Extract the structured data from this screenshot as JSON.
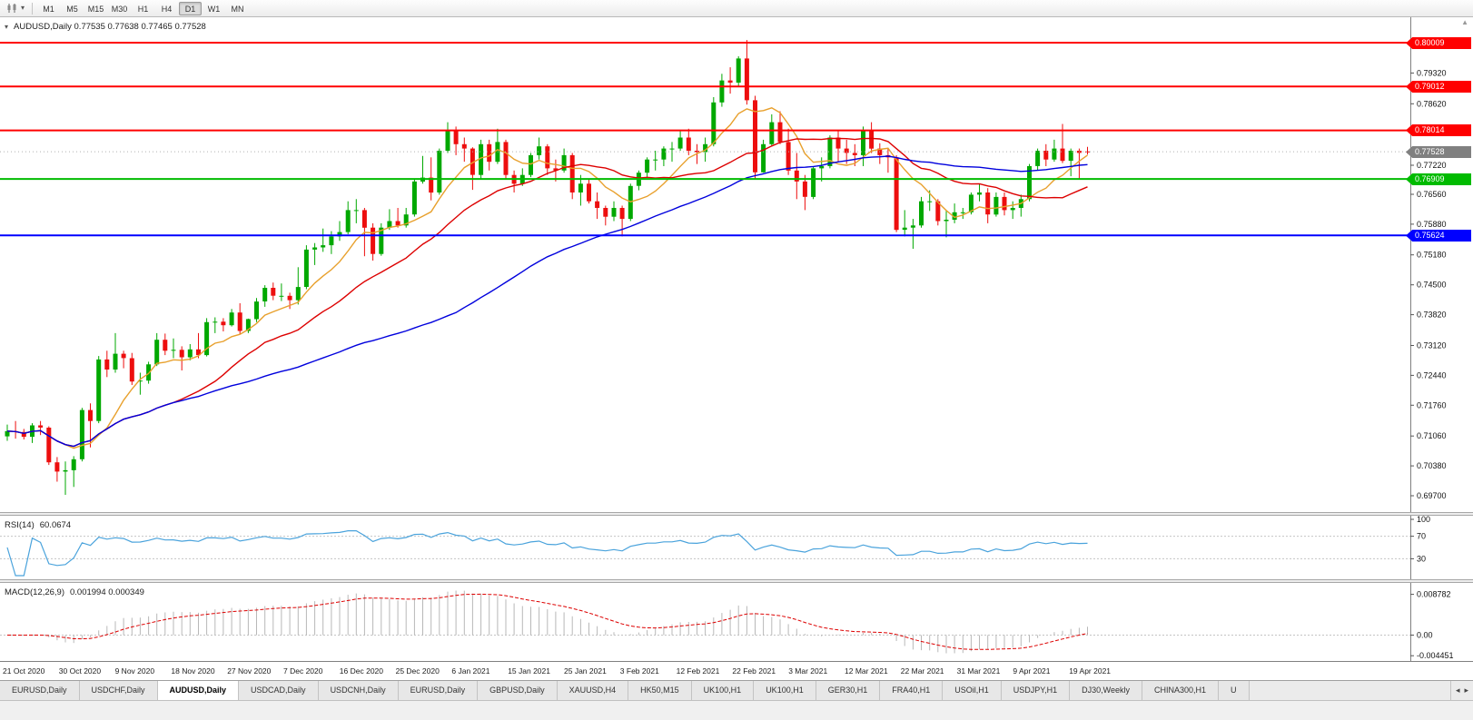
{
  "toolbar": {
    "dropdown_glyph": "▾",
    "timeframes": [
      "M1",
      "M5",
      "M15",
      "M30",
      "H1",
      "H4",
      "D1",
      "W1",
      "MN"
    ],
    "active_timeframe": "D1"
  },
  "chart": {
    "collapse_glyph": "▾",
    "scroll_up_glyph": "▲",
    "ohlc_readout": "AUDUSD,Daily 0.77535 0.77638 0.77465 0.77528"
  },
  "chart_data": {
    "type": "candlestick",
    "symbol": "AUDUSD",
    "timeframe": "Daily",
    "current_bar": {
      "open": 0.77535,
      "high": 0.77638,
      "low": 0.77465,
      "close": 0.77528
    },
    "colors": {
      "up": "#00A800",
      "down": "#ED0E0E"
    },
    "ohlc": [
      [
        0.7105,
        0.7132,
        0.7095,
        0.7117
      ],
      [
        0.7117,
        0.714,
        0.71,
        0.7115
      ],
      [
        0.7115,
        0.7122,
        0.7098,
        0.7104
      ],
      [
        0.7104,
        0.7135,
        0.709,
        0.713
      ],
      [
        0.713,
        0.714,
        0.7108,
        0.7125
      ],
      [
        0.7125,
        0.7128,
        0.704,
        0.7046
      ],
      [
        0.7046,
        0.7058,
        0.7002,
        0.7025
      ],
      [
        0.7025,
        0.7048,
        0.6972,
        0.7028
      ],
      [
        0.7028,
        0.706,
        0.699,
        0.7053
      ],
      [
        0.7053,
        0.717,
        0.7048,
        0.7165
      ],
      [
        0.7165,
        0.718,
        0.708,
        0.714
      ],
      [
        0.714,
        0.7288,
        0.7135,
        0.728
      ],
      [
        0.728,
        0.73,
        0.724,
        0.7257
      ],
      [
        0.7257,
        0.734,
        0.725,
        0.7293
      ],
      [
        0.7293,
        0.73,
        0.726,
        0.7283
      ],
      [
        0.7283,
        0.7295,
        0.7222,
        0.723
      ],
      [
        0.723,
        0.725,
        0.72,
        0.7232
      ],
      [
        0.7232,
        0.7275,
        0.7225,
        0.7269
      ],
      [
        0.7269,
        0.734,
        0.7265,
        0.7325
      ],
      [
        0.7325,
        0.7339,
        0.729,
        0.73
      ],
      [
        0.73,
        0.7328,
        0.7283,
        0.7302
      ],
      [
        0.7302,
        0.731,
        0.7255,
        0.7285
      ],
      [
        0.7285,
        0.7315,
        0.7278,
        0.7303
      ],
      [
        0.7303,
        0.734,
        0.7283,
        0.729
      ],
      [
        0.729,
        0.7374,
        0.7287,
        0.7365
      ],
      [
        0.7365,
        0.7376,
        0.734,
        0.7366
      ],
      [
        0.7366,
        0.7374,
        0.7344,
        0.7358
      ],
      [
        0.7358,
        0.7395,
        0.7355,
        0.7387
      ],
      [
        0.7387,
        0.7408,
        0.7338,
        0.7345
      ],
      [
        0.7345,
        0.7373,
        0.734,
        0.7372
      ],
      [
        0.7372,
        0.742,
        0.7365,
        0.7412
      ],
      [
        0.7412,
        0.7449,
        0.74,
        0.7443
      ],
      [
        0.7443,
        0.7455,
        0.7415,
        0.7425
      ],
      [
        0.7425,
        0.7453,
        0.7413,
        0.7425
      ],
      [
        0.7425,
        0.7432,
        0.7395,
        0.7415
      ],
      [
        0.7415,
        0.749,
        0.7405,
        0.7445
      ],
      [
        0.7445,
        0.754,
        0.744,
        0.753
      ],
      [
        0.753,
        0.7545,
        0.7495,
        0.7535
      ],
      [
        0.7535,
        0.7578,
        0.7525,
        0.754
      ],
      [
        0.754,
        0.7572,
        0.752,
        0.756
      ],
      [
        0.756,
        0.7595,
        0.755,
        0.757
      ],
      [
        0.757,
        0.764,
        0.7565,
        0.762
      ],
      [
        0.762,
        0.7645,
        0.759,
        0.762
      ],
      [
        0.762,
        0.7625,
        0.7515,
        0.758
      ],
      [
        0.758,
        0.759,
        0.7505,
        0.752
      ],
      [
        0.752,
        0.759,
        0.7516,
        0.758
      ],
      [
        0.758,
        0.7622,
        0.7575,
        0.7595
      ],
      [
        0.7595,
        0.7625,
        0.758,
        0.7585
      ],
      [
        0.7585,
        0.7625,
        0.758,
        0.761
      ],
      [
        0.761,
        0.769,
        0.7605,
        0.7685
      ],
      [
        0.7685,
        0.7743,
        0.768,
        0.7694
      ],
      [
        0.7694,
        0.774,
        0.7642,
        0.766
      ],
      [
        0.766,
        0.776,
        0.7655,
        0.7755
      ],
      [
        0.7755,
        0.782,
        0.775,
        0.78
      ],
      [
        0.78,
        0.781,
        0.7745,
        0.777
      ],
      [
        0.777,
        0.7785,
        0.773,
        0.776
      ],
      [
        0.776,
        0.7763,
        0.7666,
        0.77
      ],
      [
        0.77,
        0.778,
        0.769,
        0.777
      ],
      [
        0.777,
        0.778,
        0.771,
        0.773
      ],
      [
        0.773,
        0.7805,
        0.7725,
        0.7775
      ],
      [
        0.7775,
        0.778,
        0.769,
        0.77
      ],
      [
        0.77,
        0.771,
        0.766,
        0.768
      ],
      [
        0.768,
        0.7715,
        0.7675,
        0.77
      ],
      [
        0.77,
        0.775,
        0.7695,
        0.7745
      ],
      [
        0.7745,
        0.7785,
        0.7735,
        0.7765
      ],
      [
        0.7765,
        0.777,
        0.77,
        0.7715
      ],
      [
        0.7715,
        0.7735,
        0.7685,
        0.771
      ],
      [
        0.771,
        0.776,
        0.7705,
        0.7745
      ],
      [
        0.7745,
        0.775,
        0.7645,
        0.766
      ],
      [
        0.766,
        0.77,
        0.763,
        0.768
      ],
      [
        0.768,
        0.769,
        0.7635,
        0.764
      ],
      [
        0.764,
        0.766,
        0.76,
        0.7625
      ],
      [
        0.7625,
        0.763,
        0.7585,
        0.7605
      ],
      [
        0.7605,
        0.764,
        0.7595,
        0.7625
      ],
      [
        0.7625,
        0.763,
        0.756,
        0.76
      ],
      [
        0.76,
        0.768,
        0.7595,
        0.7675
      ],
      [
        0.7675,
        0.771,
        0.7665,
        0.7705
      ],
      [
        0.7705,
        0.774,
        0.7695,
        0.7735
      ],
      [
        0.7735,
        0.7755,
        0.771,
        0.7735
      ],
      [
        0.7735,
        0.7765,
        0.772,
        0.776
      ],
      [
        0.776,
        0.7775,
        0.773,
        0.776
      ],
      [
        0.776,
        0.78,
        0.7755,
        0.7785
      ],
      [
        0.7785,
        0.7805,
        0.7745,
        0.7755
      ],
      [
        0.7755,
        0.777,
        0.7725,
        0.7752
      ],
      [
        0.7752,
        0.7785,
        0.773,
        0.777
      ],
      [
        0.777,
        0.7877,
        0.7765,
        0.7865
      ],
      [
        0.7865,
        0.793,
        0.7855,
        0.7915
      ],
      [
        0.7915,
        0.7945,
        0.7885,
        0.791
      ],
      [
        0.791,
        0.797,
        0.79,
        0.7965
      ],
      [
        0.7965,
        0.8007,
        0.786,
        0.787
      ],
      [
        0.787,
        0.788,
        0.7692,
        0.7706
      ],
      [
        0.7706,
        0.778,
        0.7705,
        0.777
      ],
      [
        0.777,
        0.7838,
        0.7765,
        0.782
      ],
      [
        0.782,
        0.7845,
        0.777,
        0.7775
      ],
      [
        0.7775,
        0.7805,
        0.77,
        0.771
      ],
      [
        0.771,
        0.775,
        0.7645,
        0.7685
      ],
      [
        0.7685,
        0.77,
        0.762,
        0.765
      ],
      [
        0.765,
        0.772,
        0.7645,
        0.7715
      ],
      [
        0.7715,
        0.774,
        0.7685,
        0.772
      ],
      [
        0.772,
        0.779,
        0.7715,
        0.7785
      ],
      [
        0.7785,
        0.78,
        0.773,
        0.776
      ],
      [
        0.776,
        0.778,
        0.7725,
        0.775
      ],
      [
        0.775,
        0.777,
        0.772,
        0.7745
      ],
      [
        0.7745,
        0.781,
        0.772,
        0.78
      ],
      [
        0.78,
        0.782,
        0.775,
        0.776
      ],
      [
        0.776,
        0.7772,
        0.7725,
        0.7745
      ],
      [
        0.7745,
        0.776,
        0.7705,
        0.774
      ],
      [
        0.774,
        0.7745,
        0.757,
        0.7575
      ],
      [
        0.7575,
        0.762,
        0.756,
        0.758
      ],
      [
        0.758,
        0.76,
        0.7532,
        0.7585
      ],
      [
        0.7585,
        0.765,
        0.758,
        0.764
      ],
      [
        0.764,
        0.7665,
        0.7618,
        0.764
      ],
      [
        0.764,
        0.7645,
        0.7585,
        0.7595
      ],
      [
        0.7595,
        0.762,
        0.7558,
        0.7598
      ],
      [
        0.7598,
        0.7635,
        0.759,
        0.7615
      ],
      [
        0.7615,
        0.7625,
        0.76,
        0.7615
      ],
      [
        0.7615,
        0.766,
        0.761,
        0.7655
      ],
      [
        0.7655,
        0.768,
        0.764,
        0.766
      ],
      [
        0.766,
        0.767,
        0.759,
        0.761
      ],
      [
        0.761,
        0.766,
        0.7605,
        0.765
      ],
      [
        0.765,
        0.766,
        0.7608,
        0.762
      ],
      [
        0.762,
        0.764,
        0.76,
        0.7625
      ],
      [
        0.7625,
        0.7655,
        0.7605,
        0.7645
      ],
      [
        0.7645,
        0.7725,
        0.764,
        0.772
      ],
      [
        0.772,
        0.776,
        0.771,
        0.7755
      ],
      [
        0.7755,
        0.777,
        0.772,
        0.7735
      ],
      [
        0.7735,
        0.778,
        0.773,
        0.776
      ],
      [
        0.776,
        0.7816,
        0.7727,
        0.7732
      ],
      [
        0.7732,
        0.776,
        0.7697,
        0.7755
      ],
      [
        0.7755,
        0.776,
        0.7692,
        0.775
      ],
      [
        0.77535,
        0.77638,
        0.77465,
        0.77528
      ]
    ],
    "x_tick_labels": [
      "21 Oct 2020",
      "30 Oct 2020",
      "9 Nov 2020",
      "18 Nov 2020",
      "27 Nov 2020",
      "7 Dec 2020",
      "16 Dec 2020",
      "25 Dec 2020",
      "6 Jan 2021",
      "15 Jan 2021",
      "25 Jan 2021",
      "3 Feb 2021",
      "12 Feb 2021",
      "22 Feb 2021",
      "3 Mar 2021",
      "12 Mar 2021",
      "22 Mar 2021",
      "31 Mar 2021",
      "9 Apr 2021",
      "19 Apr 2021"
    ],
    "y_tick_labels": [
      "0.79320",
      "0.78620",
      "0.77220",
      "0.76560",
      "0.75880",
      "0.75180",
      "0.74500",
      "0.73820",
      "0.73120",
      "0.72440",
      "0.71760",
      "0.71060",
      "0.70380",
      "0.69700"
    ],
    "price_lines": [
      {
        "value": 0.80009,
        "label": "0.80009",
        "color": "#FF0000"
      },
      {
        "value": 0.79012,
        "label": "0.79012",
        "color": "#FF0000"
      },
      {
        "value": 0.78014,
        "label": "0.78014",
        "color": "#FF0000"
      },
      {
        "value": 0.76909,
        "label": "0.76909",
        "color": "#00BB00"
      },
      {
        "value": 0.75624,
        "label": "0.75624",
        "color": "#0000FF"
      }
    ],
    "bid_line": {
      "value": 0.77528,
      "label": "0.77528",
      "color": "#808080"
    },
    "moving_averages": [
      {
        "name": "fast-ma",
        "period": 8,
        "color": "#E8A02C"
      },
      {
        "name": "medium-ma",
        "period": 21,
        "color": "#DD0000"
      },
      {
        "name": "slow-ma",
        "period": 55,
        "color": "#0000DD"
      }
    ],
    "rsi": {
      "label": "RSI(14)",
      "value_label": "60.0674",
      "period": 14,
      "color": "#4AA3DC",
      "levels_dashed": [
        70,
        30
      ],
      "axis_labels": [
        "100",
        "70",
        "30"
      ]
    },
    "macd": {
      "label": "MACD(12,26,9)",
      "value_label": "0.001994 0.000349",
      "fast": 12,
      "slow": 26,
      "signal": 9,
      "histogram_color": "#B8B8B8",
      "signal_color": "#DD0000",
      "axis_labels": [
        "0.008782",
        "0.00",
        "-0.004451"
      ]
    }
  },
  "tabs": {
    "scroll_left_glyph": "◂",
    "scroll_right_glyph": "▸",
    "items": [
      {
        "label": "EURUSD,Daily"
      },
      {
        "label": "USDCHF,Daily"
      },
      {
        "label": "AUDUSD,Daily",
        "active": true
      },
      {
        "label": "USDCAD,Daily"
      },
      {
        "label": "USDCNH,Daily"
      },
      {
        "label": "EURUSD,Daily"
      },
      {
        "label": "GBPUSD,Daily"
      },
      {
        "label": "XAUUSD,H4"
      },
      {
        "label": "HK50,M15"
      },
      {
        "label": "UK100,H1"
      },
      {
        "label": "UK100,H1"
      },
      {
        "label": "GER30,H1"
      },
      {
        "label": "FRA40,H1"
      },
      {
        "label": "USOil,H1"
      },
      {
        "label": "USDJPY,H1"
      },
      {
        "label": "DJ30,Weekly"
      },
      {
        "label": "CHINA300,H1"
      },
      {
        "label": "U"
      }
    ]
  }
}
